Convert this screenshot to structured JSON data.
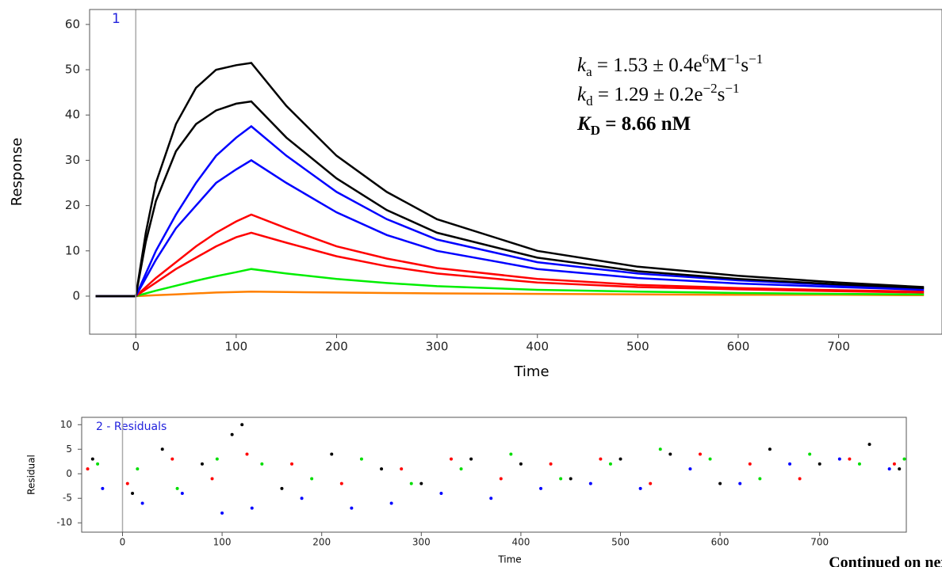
{
  "chart_data": [
    {
      "type": "line",
      "panel_label": "1",
      "y_label": "Response",
      "x_label": "Time",
      "annotations": [
        [
          "k",
          "a",
          " = 1.53 ± 0.4e",
          "6",
          "M",
          "−1",
          "s",
          "−1"
        ],
        [
          "k",
          "d",
          " = 1.29 ± 0.2e",
          "−2",
          "s",
          "−1"
        ],
        [
          "K",
          "D",
          " = 8.66 nM"
        ]
      ],
      "x": [
        -40,
        -20,
        0,
        10,
        20,
        40,
        60,
        80,
        100,
        115,
        150,
        200,
        250,
        300,
        400,
        500,
        600,
        700,
        785
      ],
      "xlim": [
        -46,
        803
      ],
      "ylim": [
        -8.4,
        63.3
      ],
      "xticks": [
        0,
        100,
        200,
        300,
        400,
        500,
        600,
        700
      ],
      "yticks": [
        0,
        10,
        20,
        30,
        40,
        50,
        60
      ],
      "series": [
        {
          "color": "#000000",
          "values": [
            0,
            0,
            0,
            14,
            25,
            38,
            46,
            50,
            51,
            51.5,
            42,
            31,
            23,
            17,
            10,
            6.5,
            4.5,
            3,
            2
          ]
        },
        {
          "color": "#000000",
          "values": [
            0,
            0,
            0,
            12,
            21,
            32,
            38,
            41,
            42.5,
            43,
            35,
            26,
            19,
            14,
            8.5,
            5.5,
            3.8,
            2.6,
            1.8
          ]
        },
        {
          "color": "#0000ff",
          "values": [
            0,
            0,
            0,
            5,
            10,
            18,
            25,
            31,
            35,
            37.5,
            31,
            23,
            17,
            12.5,
            7.5,
            5,
            3.5,
            2.4,
            1.7
          ]
        },
        {
          "color": "#0000ff",
          "values": [
            0,
            0,
            0,
            4,
            8,
            15,
            20,
            25,
            28,
            30,
            25,
            18.5,
            13.5,
            10,
            6,
            4,
            2.8,
            2,
            1.4
          ]
        },
        {
          "color": "#ff0000",
          "values": [
            0,
            0,
            0,
            2,
            4,
            7.5,
            11,
            14,
            16.5,
            18,
            15,
            11,
            8.3,
            6.2,
            3.8,
            2.5,
            1.8,
            1.3,
            1
          ]
        },
        {
          "color": "#ff0000",
          "values": [
            0,
            0,
            0,
            1.5,
            3,
            6,
            8.5,
            11,
            13,
            14,
            11.8,
            8.8,
            6.6,
            5,
            3,
            2,
            1.5,
            1.1,
            0.8
          ]
        },
        {
          "color": "#00ee00",
          "values": [
            0,
            0,
            0,
            0.6,
            1.2,
            2.3,
            3.4,
            4.4,
            5.3,
            6,
            5,
            3.8,
            2.9,
            2.2,
            1.4,
            1,
            0.7,
            0.5,
            0.4
          ]
        },
        {
          "color": "#ff8000",
          "values": [
            0,
            0,
            0,
            0.1,
            0.2,
            0.4,
            0.6,
            0.8,
            0.9,
            1,
            0.9,
            0.8,
            0.7,
            0.6,
            0.5,
            0.4,
            0.3,
            0.3,
            0.2
          ]
        }
      ]
    },
    {
      "type": "scatter",
      "panel_label": "2 - Residuals",
      "y_label": "Residual",
      "x_label": "Time",
      "xlim": [
        -41,
        787
      ],
      "ylim": [
        -11.9,
        11.5
      ],
      "xticks": [
        0,
        100,
        200,
        300,
        400,
        500,
        600,
        700
      ],
      "yticks": [
        -10,
        -5,
        0,
        5,
        10
      ],
      "series": [
        {
          "color": "#000000",
          "x": [
            -30,
            10,
            40,
            80,
            110,
            120,
            160,
            210,
            260,
            300,
            350,
            400,
            450,
            500,
            550,
            600,
            650,
            700,
            750,
            780
          ],
          "values": [
            3,
            -4,
            5,
            2,
            8,
            10,
            -3,
            4,
            1,
            -2,
            3,
            2,
            -1,
            3,
            4,
            -2,
            5,
            2,
            6,
            1
          ]
        },
        {
          "color": "#0000ff",
          "x": [
            -20,
            20,
            60,
            100,
            130,
            180,
            230,
            270,
            320,
            370,
            420,
            470,
            520,
            570,
            620,
            670,
            720,
            770
          ],
          "values": [
            -3,
            -6,
            -4,
            -8,
            -7,
            -5,
            -7,
            -6,
            -4,
            -5,
            -3,
            -2,
            -3,
            1,
            -2,
            2,
            3,
            1
          ]
        },
        {
          "color": "#ff0000",
          "x": [
            -35,
            5,
            50,
            90,
            125,
            170,
            220,
            280,
            330,
            380,
            430,
            480,
            530,
            580,
            630,
            680,
            730,
            775
          ],
          "values": [
            1,
            -2,
            3,
            -1,
            4,
            2,
            -2,
            1,
            3,
            -1,
            2,
            3,
            -2,
            4,
            2,
            -1,
            3,
            2
          ]
        },
        {
          "color": "#00dd00",
          "x": [
            -25,
            15,
            55,
            95,
            140,
            190,
            240,
            290,
            340,
            390,
            440,
            490,
            540,
            590,
            640,
            690,
            740,
            785
          ],
          "values": [
            2,
            1,
            -3,
            3,
            2,
            -1,
            3,
            -2,
            1,
            4,
            -1,
            2,
            5,
            3,
            -1,
            4,
            2,
            3
          ]
        }
      ]
    },
    {
      "type": "note",
      "footer": "Continued on next page"
    }
  ]
}
